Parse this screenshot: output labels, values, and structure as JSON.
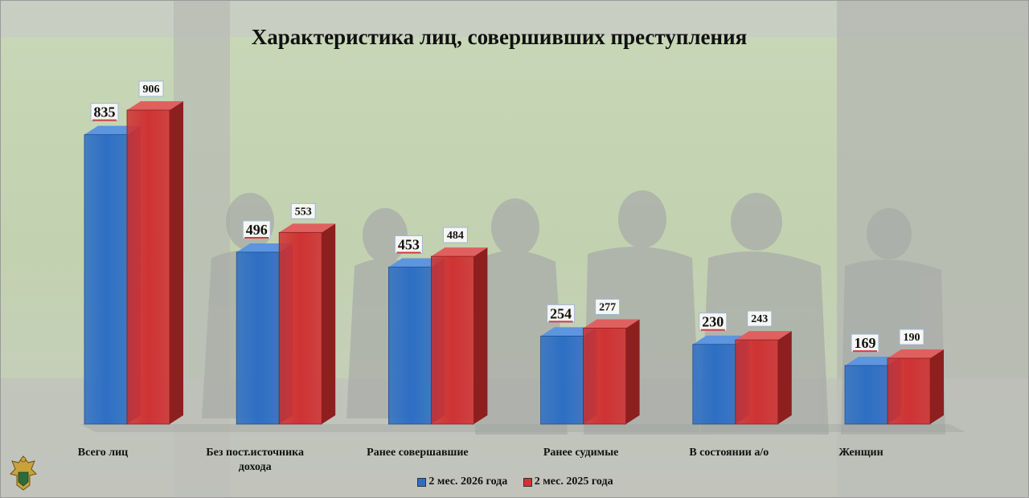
{
  "chart_data": {
    "type": "bar",
    "title": "Характеристика лиц, совершивших преступления",
    "categories": [
      "Всего лиц",
      "Без пост.источника дохода",
      "Ранее совершавшие",
      "Ранее судимые",
      "В состоянии а/о",
      "Женщин"
    ],
    "series": [
      {
        "name": "2 мес. 2026 года",
        "values": [
          835,
          496,
          453,
          254,
          230,
          169
        ],
        "color": "#2e6fc4"
      },
      {
        "name": "2 мес. 2025 года",
        "values": [
          906,
          553,
          484,
          277,
          243,
          190
        ],
        "color": "#cf3333"
      }
    ],
    "ylim": [
      0,
      906
    ],
    "grid": false,
    "legend": "bottom"
  },
  "colors": {
    "side_blue": "#1d4f92",
    "side_red": "#8e1f1f",
    "top_blue": "#5d95de",
    "top_red": "#e06060"
  },
  "logo": {
    "icon": "prosecutor-emblem-icon"
  }
}
